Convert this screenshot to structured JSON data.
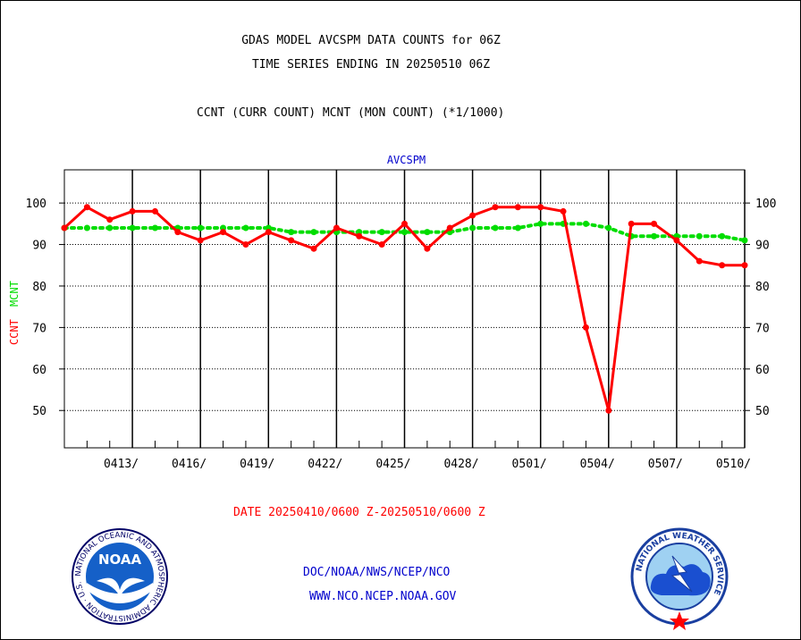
{
  "header": {
    "title_line1": "GDAS MODEL AVCSPM DATA COUNTS for 06Z",
    "title_line2": "TIME SERIES ENDING IN 20250510 06Z",
    "subtitle": "CCNT (CURR COUNT) MCNT (MON COUNT) (*1/1000)"
  },
  "footer": {
    "date_range": "DATE 20250410/0600 Z-20250510/0600 Z",
    "link1": "DOC/NOAA/NWS/NCEP/NCO",
    "link2": "WWW.NCO.NCEP.NOAA.GOV",
    "noaa_logo_text": "NOAA",
    "noaa_ring_text": "NATIONAL OCEANIC AND ATMOSPHERIC ADMINISTRATION · U.S. DEPARTMENT OF COMMERCE ·",
    "nws_ring_text": "NATIONAL WEATHER SERVICE"
  },
  "colors": {
    "ccnt": "#ff0000",
    "mcnt": "#00dd00",
    "chart_title": "#0000cc",
    "date_text": "#ff0000",
    "footer_text": "#0000cc"
  },
  "chart_data": {
    "type": "line",
    "title": "AVCSPM",
    "ylabel_ccnt": "CCNT",
    "ylabel_mcnt": "MCNT",
    "ylim": [
      41,
      108
    ],
    "yticks": [
      50,
      60,
      70,
      80,
      90,
      100
    ],
    "x_start": "2025-04-10 06Z",
    "x_end": "2025-05-10 06Z",
    "xtick_labels": [
      "0413/",
      "0416/",
      "0419/",
      "0422/",
      "0425/",
      "0428/",
      "0501/",
      "0504/",
      "0507/",
      "0510/"
    ],
    "grid": true,
    "series": [
      {
        "name": "CCNT",
        "values": [
          94,
          99,
          96,
          98,
          98,
          93,
          91,
          93,
          90,
          93,
          91,
          89,
          94,
          92,
          90,
          95,
          89,
          94,
          97,
          99,
          99,
          99,
          98,
          70,
          50,
          95,
          95,
          91,
          86,
          85,
          85
        ]
      },
      {
        "name": "MCNT",
        "values": [
          94,
          94,
          94,
          94,
          94,
          94,
          94,
          94,
          94,
          94,
          93,
          93,
          93,
          93,
          93,
          93,
          93,
          93,
          94,
          94,
          94,
          95,
          95,
          95,
          94,
          92,
          92,
          92,
          92,
          92,
          91
        ]
      }
    ]
  }
}
